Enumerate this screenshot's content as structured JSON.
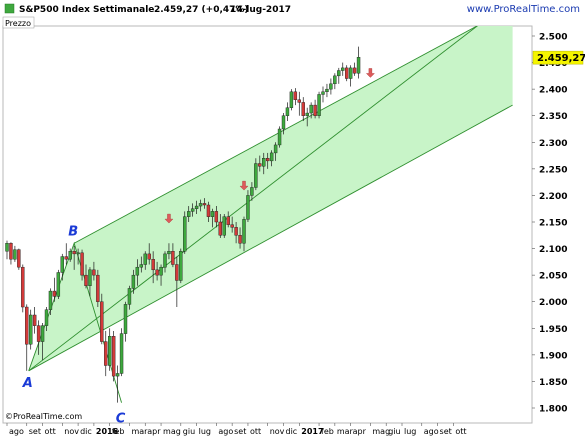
{
  "header": {
    "symbol": "S&P500 Index",
    "period": "Settimanale",
    "price": "2.459,27 (+0,47%)",
    "date": "14-lug-2017",
    "source": "www.ProRealTime.com"
  },
  "panel_label": "Prezzo",
  "footer_source": "©ProRealTime.com",
  "colors": {
    "up": "#3ea83e",
    "down": "#d23a3a",
    "channel_fill": "#c8f4c8",
    "channel_line": "#2f8f2f",
    "label_blue": "#1a3ad6",
    "arrow": "#dd5b5b",
    "price_tag": "#f5f500"
  },
  "chart_data": {
    "type": "candlestick",
    "title": "",
    "ylim": [
      1780,
      2540
    ],
    "y_ticks": [
      "2.500",
      "2.450",
      "2.400",
      "2.350",
      "2.300",
      "2.250",
      "2.200",
      "2.150",
      "2.100",
      "2.050",
      "2.000",
      "1.950",
      "1.900",
      "1.850",
      "1.800"
    ],
    "y_tick_values": [
      2500,
      2450,
      2400,
      2350,
      2300,
      2250,
      2200,
      2150,
      2100,
      2050,
      2000,
      1950,
      1900,
      1850,
      1800
    ],
    "last_price_label": "2.459,27",
    "last_price_value": 2459.27,
    "x_ticks": [
      {
        "label": "ago",
        "w": 0
      },
      {
        "label": "set",
        "w": 5
      },
      {
        "label": "ott",
        "w": 9
      },
      {
        "label": "nov",
        "w": 14
      },
      {
        "label": "dic",
        "w": 18
      },
      {
        "label": "2016",
        "w": 22,
        "bold": true
      },
      {
        "label": "feb",
        "w": 26
      },
      {
        "label": "mar",
        "w": 31
      },
      {
        "label": "apr",
        "w": 35
      },
      {
        "label": "mag",
        "w": 39
      },
      {
        "label": "giu",
        "w": 44
      },
      {
        "label": "lug",
        "w": 48
      },
      {
        "label": "ago",
        "w": 53
      },
      {
        "label": "set",
        "w": 57
      },
      {
        "label": "ott",
        "w": 61
      },
      {
        "label": "nov",
        "w": 66
      },
      {
        "label": "dic",
        "w": 70
      },
      {
        "label": "2017",
        "w": 74,
        "bold": true
      },
      {
        "label": "feb",
        "w": 79
      },
      {
        "label": "mar",
        "w": 83
      },
      {
        "label": "apr",
        "w": 87
      },
      {
        "label": "mag",
        "w": 92
      },
      {
        "label": "giu",
        "w": 96
      },
      {
        "label": "lug",
        "w": 100
      },
      {
        "label": "ago",
        "w": 105
      },
      {
        "label": "set",
        "w": 109
      },
      {
        "label": "ott",
        "w": 113
      }
    ],
    "candles": [
      {
        "o": 2095,
        "h": 2115,
        "l": 2080,
        "c": 2110
      },
      {
        "o": 2110,
        "h": 2112,
        "l": 2070,
        "c": 2080
      },
      {
        "o": 2080,
        "h": 2105,
        "l": 2075,
        "c": 2098
      },
      {
        "o": 2098,
        "h": 2100,
        "l": 2060,
        "c": 2065
      },
      {
        "o": 2065,
        "h": 2070,
        "l": 1980,
        "c": 1990
      },
      {
        "o": 1990,
        "h": 1995,
        "l": 1870,
        "c": 1920
      },
      {
        "o": 1920,
        "h": 1985,
        "l": 1910,
        "c": 1975
      },
      {
        "o": 1975,
        "h": 1990,
        "l": 1940,
        "c": 1955
      },
      {
        "o": 1955,
        "h": 1965,
        "l": 1900,
        "c": 1925
      },
      {
        "o": 1925,
        "h": 1960,
        "l": 1890,
        "c": 1955
      },
      {
        "o": 1955,
        "h": 1990,
        "l": 1945,
        "c": 1985
      },
      {
        "o": 1985,
        "h": 2025,
        "l": 1975,
        "c": 2020
      },
      {
        "o": 2020,
        "h": 2045,
        "l": 2000,
        "c": 2010
      },
      {
        "o": 2010,
        "h": 2060,
        "l": 2005,
        "c": 2055
      },
      {
        "o": 2055,
        "h": 2090,
        "l": 2040,
        "c": 2085
      },
      {
        "o": 2085,
        "h": 2110,
        "l": 2070,
        "c": 2080
      },
      {
        "o": 2080,
        "h": 2100,
        "l": 2075,
        "c": 2095
      },
      {
        "o": 2095,
        "h": 2105,
        "l": 2060,
        "c": 2090
      },
      {
        "o": 2090,
        "h": 2100,
        "l": 2070,
        "c": 2092
      },
      {
        "o": 2092,
        "h": 2098,
        "l": 2040,
        "c": 2050
      },
      {
        "o": 2050,
        "h": 2070,
        "l": 2025,
        "c": 2030
      },
      {
        "o": 2030,
        "h": 2065,
        "l": 2010,
        "c": 2060
      },
      {
        "o": 2060,
        "h": 2075,
        "l": 2040,
        "c": 2050
      },
      {
        "o": 2050,
        "h": 2060,
        "l": 1990,
        "c": 2000
      },
      {
        "o": 2000,
        "h": 2015,
        "l": 1920,
        "c": 1925
      },
      {
        "o": 1925,
        "h": 1945,
        "l": 1860,
        "c": 1880
      },
      {
        "o": 1880,
        "h": 1950,
        "l": 1870,
        "c": 1935
      },
      {
        "o": 1935,
        "h": 1945,
        "l": 1850,
        "c": 1860
      },
      {
        "o": 1860,
        "h": 1880,
        "l": 1810,
        "c": 1865
      },
      {
        "o": 1865,
        "h": 1950,
        "l": 1860,
        "c": 1940
      },
      {
        "o": 1940,
        "h": 2000,
        "l": 1925,
        "c": 1995
      },
      {
        "o": 1995,
        "h": 2030,
        "l": 1985,
        "c": 2025
      },
      {
        "o": 2025,
        "h": 2060,
        "l": 2015,
        "c": 2050
      },
      {
        "o": 2050,
        "h": 2080,
        "l": 2030,
        "c": 2065
      },
      {
        "o": 2065,
        "h": 2085,
        "l": 2055,
        "c": 2070
      },
      {
        "o": 2070,
        "h": 2095,
        "l": 2060,
        "c": 2090
      },
      {
        "o": 2090,
        "h": 2110,
        "l": 2070,
        "c": 2080
      },
      {
        "o": 2080,
        "h": 2095,
        "l": 2035,
        "c": 2060
      },
      {
        "o": 2060,
        "h": 2075,
        "l": 2040,
        "c": 2050
      },
      {
        "o": 2050,
        "h": 2070,
        "l": 2030,
        "c": 2065
      },
      {
        "o": 2065,
        "h": 2095,
        "l": 2055,
        "c": 2090
      },
      {
        "o": 2090,
        "h": 2110,
        "l": 2080,
        "c": 2095
      },
      {
        "o": 2095,
        "h": 2110,
        "l": 2065,
        "c": 2070
      },
      {
        "o": 2070,
        "h": 2085,
        "l": 1990,
        "c": 2040
      },
      {
        "o": 2040,
        "h": 2100,
        "l": 2035,
        "c": 2095
      },
      {
        "o": 2095,
        "h": 2170,
        "l": 2090,
        "c": 2160
      },
      {
        "o": 2160,
        "h": 2180,
        "l": 2150,
        "c": 2170
      },
      {
        "o": 2170,
        "h": 2185,
        "l": 2160,
        "c": 2175
      },
      {
        "o": 2175,
        "h": 2190,
        "l": 2165,
        "c": 2180
      },
      {
        "o": 2180,
        "h": 2192,
        "l": 2170,
        "c": 2185
      },
      {
        "o": 2185,
        "h": 2195,
        "l": 2175,
        "c": 2182
      },
      {
        "o": 2182,
        "h": 2188,
        "l": 2150,
        "c": 2160
      },
      {
        "o": 2160,
        "h": 2175,
        "l": 2140,
        "c": 2170
      },
      {
        "o": 2170,
        "h": 2180,
        "l": 2140,
        "c": 2150
      },
      {
        "o": 2150,
        "h": 2165,
        "l": 2120,
        "c": 2125
      },
      {
        "o": 2125,
        "h": 2165,
        "l": 2120,
        "c": 2160
      },
      {
        "o": 2160,
        "h": 2170,
        "l": 2140,
        "c": 2145
      },
      {
        "o": 2145,
        "h": 2160,
        "l": 2130,
        "c": 2140
      },
      {
        "o": 2140,
        "h": 2150,
        "l": 2110,
        "c": 2125
      },
      {
        "o": 2125,
        "h": 2140,
        "l": 2100,
        "c": 2110
      },
      {
        "o": 2110,
        "h": 2160,
        "l": 2095,
        "c": 2155
      },
      {
        "o": 2155,
        "h": 2210,
        "l": 2150,
        "c": 2200
      },
      {
        "o": 2200,
        "h": 2225,
        "l": 2190,
        "c": 2215
      },
      {
        "o": 2215,
        "h": 2270,
        "l": 2210,
        "c": 2260
      },
      {
        "o": 2260,
        "h": 2275,
        "l": 2245,
        "c": 2255
      },
      {
        "o": 2255,
        "h": 2280,
        "l": 2240,
        "c": 2270
      },
      {
        "o": 2270,
        "h": 2280,
        "l": 2250,
        "c": 2265
      },
      {
        "o": 2265,
        "h": 2285,
        "l": 2255,
        "c": 2280
      },
      {
        "o": 2280,
        "h": 2300,
        "l": 2265,
        "c": 2295
      },
      {
        "o": 2295,
        "h": 2330,
        "l": 2290,
        "c": 2325
      },
      {
        "o": 2325,
        "h": 2355,
        "l": 2315,
        "c": 2350
      },
      {
        "o": 2350,
        "h": 2375,
        "l": 2340,
        "c": 2365
      },
      {
        "o": 2365,
        "h": 2400,
        "l": 2360,
        "c": 2395
      },
      {
        "o": 2395,
        "h": 2402,
        "l": 2370,
        "c": 2380
      },
      {
        "o": 2380,
        "h": 2395,
        "l": 2350,
        "c": 2375
      },
      {
        "o": 2375,
        "h": 2385,
        "l": 2340,
        "c": 2350
      },
      {
        "o": 2350,
        "h": 2365,
        "l": 2330,
        "c": 2355
      },
      {
        "o": 2355,
        "h": 2375,
        "l": 2345,
        "c": 2370
      },
      {
        "o": 2370,
        "h": 2380,
        "l": 2345,
        "c": 2350
      },
      {
        "o": 2350,
        "h": 2395,
        "l": 2345,
        "c": 2390
      },
      {
        "o": 2390,
        "h": 2405,
        "l": 2375,
        "c": 2395
      },
      {
        "o": 2395,
        "h": 2410,
        "l": 2385,
        "c": 2400
      },
      {
        "o": 2400,
        "h": 2420,
        "l": 2390,
        "c": 2410
      },
      {
        "o": 2410,
        "h": 2430,
        "l": 2400,
        "c": 2425
      },
      {
        "o": 2425,
        "h": 2440,
        "l": 2410,
        "c": 2435
      },
      {
        "o": 2435,
        "h": 2450,
        "l": 2425,
        "c": 2440
      },
      {
        "o": 2440,
        "h": 2445,
        "l": 2415,
        "c": 2420
      },
      {
        "o": 2420,
        "h": 2445,
        "l": 2405,
        "c": 2440
      },
      {
        "o": 2440,
        "h": 2450,
        "l": 2425,
        "c": 2430
      },
      {
        "o": 2430,
        "h": 2480,
        "l": 2420,
        "c": 2460
      }
    ],
    "channel": {
      "lower_start": {
        "w": 5.5,
        "y": 1870
      },
      "lower_end": {
        "w": 128,
        "y": 2370
      },
      "upper_start": {
        "w": 17,
        "y": 2110
      },
      "upper_end": {
        "w": 128,
        "y": 2555
      },
      "mid_start": {
        "w": 5.5,
        "y": 1870
      },
      "mid_end": {
        "w": 121,
        "y": 2530
      },
      "triangle": [
        {
          "w": 5.5,
          "y": 1870
        },
        {
          "w": 17,
          "y": 2110
        },
        {
          "w": 29,
          "y": 1810
        }
      ]
    },
    "point_labels": [
      {
        "text": "A",
        "w": 5.5,
        "y": 1862
      },
      {
        "text": "B",
        "w": 17,
        "y": 2138
      },
      {
        "text": "C",
        "w": 29,
        "y": 1795
      }
    ],
    "arrows": [
      {
        "w": 41,
        "y": 2148
      },
      {
        "w": 60,
        "y": 2210
      },
      {
        "w": 92,
        "y": 2422
      }
    ]
  }
}
